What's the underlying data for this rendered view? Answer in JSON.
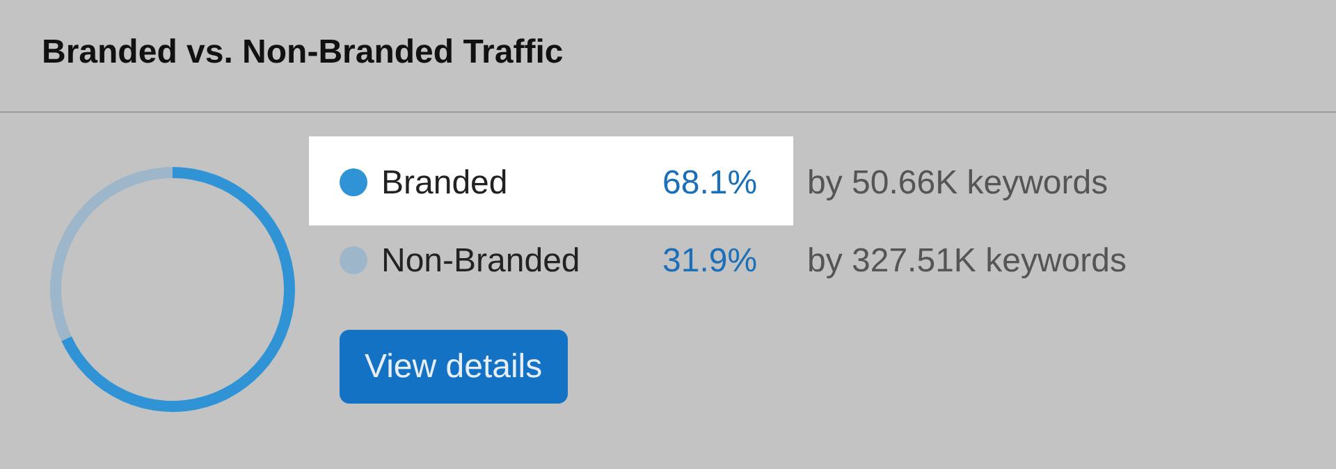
{
  "chart_data": {
    "type": "donut",
    "title": "Branded vs. Non-Branded Traffic",
    "categories": [
      "Branded",
      "Non-Branded"
    ],
    "values": [
      68.1,
      31.9
    ],
    "colors": [
      "#2f93d6",
      "#9db6c9"
    ],
    "value_labels": [
      "68.1%",
      "31.9%"
    ],
    "legend": "right",
    "annotations": [
      "by 50.66K keywords",
      "by 327.51K keywords",
      "View details"
    ]
  }
}
